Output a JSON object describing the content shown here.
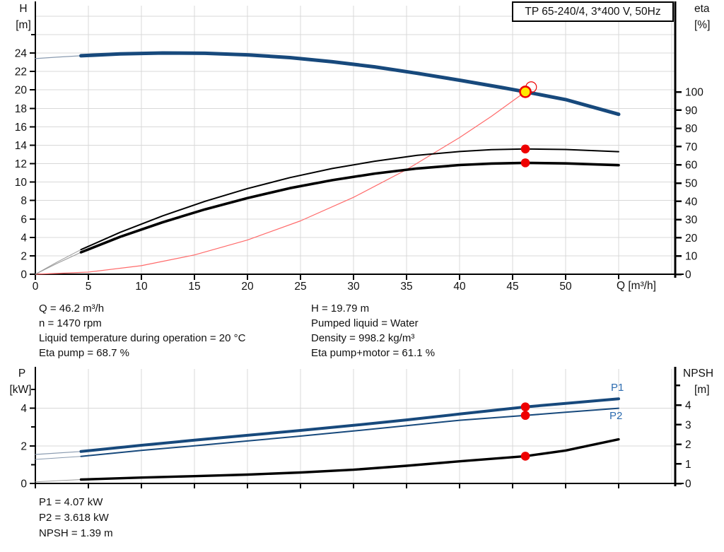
{
  "title_box": "TP 65-240/4, 3*400 V, 50Hz",
  "colors": {
    "curve_blue": "#17497c",
    "curve_black": "#000000",
    "system_red": "#ff6a6a",
    "marker_red": "#ee0000",
    "duty_yellow": "#ffe800",
    "lead_blue": "#8a9bb0",
    "lead_gray": "#9a9a9a",
    "grid": "#d8d8d8",
    "axis": "#000000",
    "label_blue": "#2d6cb0"
  },
  "axis_captions": {
    "top_left_1": "H",
    "top_left_2": "[m]",
    "top_right_1": "eta",
    "top_right_2": "[%]",
    "top_x": "Q [m³/h]",
    "bottom_left_1": "P",
    "bottom_left_2": "[kW]",
    "bottom_right_1": "NPSH",
    "bottom_right_2": "[m]"
  },
  "info": {
    "left": [
      "Q = 46.2 m³/h",
      "n = 1470 rpm",
      "Liquid temperature during operation = 20 °C",
      "Eta pump = 68.7 %"
    ],
    "right": [
      "H = 19.79 m",
      "Pumped liquid = Water",
      "Density = 998.2 kg/m³",
      "Eta pump+motor = 61.1 %"
    ],
    "bottom": [
      "P1 = 4.07 kW",
      "P2 = 3.618 kW",
      "NPSH = 1.39 m"
    ]
  },
  "curve_labels": {
    "p1": "P1",
    "p2": "P2"
  },
  "chart_data": [
    {
      "id": "head",
      "type": "line",
      "title": "TP 65-240/4, 3*400 V, 50Hz",
      "xlabel": "Q [m³/h]",
      "ylabel_left": "H [m]",
      "ylabel_right": "eta [%]",
      "x_range": [
        0,
        60.33
      ],
      "y_left_range": [
        0,
        29.14
      ],
      "y_right_range": [
        0,
        147.3
      ],
      "grid_x": [
        5,
        10,
        15,
        20,
        25,
        30,
        35,
        40,
        45,
        50,
        55,
        60
      ],
      "grid_left": [
        2,
        4,
        6,
        8,
        10,
        12,
        14,
        16,
        18,
        20,
        22,
        24,
        26,
        28
      ],
      "x_ticks": [
        {
          "v": 0,
          "label": "0"
        },
        {
          "v": 5,
          "label": "5"
        },
        {
          "v": 10,
          "label": "10"
        },
        {
          "v": 15,
          "label": "15"
        },
        {
          "v": 20,
          "label": "20"
        },
        {
          "v": 25,
          "label": "25"
        },
        {
          "v": 30,
          "label": "30"
        },
        {
          "v": 35,
          "label": "35"
        },
        {
          "v": 40,
          "label": "40"
        },
        {
          "v": 45,
          "label": "45"
        },
        {
          "v": 50,
          "label": "50"
        },
        {
          "v": 55,
          "label": ""
        }
      ],
      "left_ticks": [
        {
          "v": 0,
          "label": "0"
        },
        {
          "v": 2,
          "label": "2"
        },
        {
          "v": 4,
          "label": "4"
        },
        {
          "v": 6,
          "label": "6"
        },
        {
          "v": 8,
          "label": "8"
        },
        {
          "v": 10,
          "label": "10"
        },
        {
          "v": 12,
          "label": "12"
        },
        {
          "v": 14,
          "label": "14"
        },
        {
          "v": 16,
          "label": "16"
        },
        {
          "v": 18,
          "label": "18"
        },
        {
          "v": 20,
          "label": "20"
        },
        {
          "v": 22,
          "label": "22"
        },
        {
          "v": 24,
          "label": "24"
        },
        {
          "v": 26,
          "label": ""
        }
      ],
      "right_ticks": [
        {
          "v": 0,
          "label": "0"
        },
        {
          "v": 10,
          "label": "10"
        },
        {
          "v": 20,
          "label": "20"
        },
        {
          "v": 30,
          "label": "30"
        },
        {
          "v": 40,
          "label": "40"
        },
        {
          "v": 50,
          "label": "50"
        },
        {
          "v": 60,
          "label": "60"
        },
        {
          "v": 70,
          "label": "70"
        },
        {
          "v": 80,
          "label": "80"
        },
        {
          "v": 90,
          "label": "90"
        },
        {
          "v": 100,
          "label": "100"
        }
      ],
      "series": [
        {
          "name": "system-curve",
          "axis": "left",
          "color": "#ff6a6a",
          "width": 1.2,
          "points": [
            [
              0,
              0
            ],
            [
              5,
              0.23
            ],
            [
              10,
              0.93
            ],
            [
              15,
              2.09
            ],
            [
              20,
              3.71
            ],
            [
              25,
              5.79
            ],
            [
              30,
              8.34
            ],
            [
              35,
              11.35
            ],
            [
              40,
              14.83
            ],
            [
              43,
              17.13
            ],
            [
              46.2,
              19.79
            ]
          ]
        },
        {
          "name": "pump-head-curve",
          "axis": "left",
          "color": "#17497c",
          "width": 5,
          "lead": {
            "color": "#8a9bb0",
            "width": 1.2,
            "points": [
              [
                0,
                23.4
              ],
              [
                2,
                23.55
              ],
              [
                4.3,
                23.7
              ]
            ]
          },
          "points": [
            [
              4.3,
              23.7
            ],
            [
              8,
              23.9
            ],
            [
              12,
              24.0
            ],
            [
              16,
              23.97
            ],
            [
              20,
              23.8
            ],
            [
              24,
              23.5
            ],
            [
              28,
              23.05
            ],
            [
              32,
              22.5
            ],
            [
              36,
              21.8
            ],
            [
              40,
              21.05
            ],
            [
              44,
              20.25
            ],
            [
              46.2,
              19.79
            ],
            [
              50,
              18.95
            ],
            [
              55,
              17.35
            ]
          ]
        },
        {
          "name": "eta-pump-curve",
          "axis": "right",
          "color": "#000000",
          "width": 2,
          "lead": {
            "color": "#9a9a9a",
            "width": 1,
            "points": [
              [
                0,
                0
              ],
              [
                2,
                6.5
              ],
              [
                4.3,
                13.5
              ]
            ]
          },
          "points": [
            [
              4.3,
              13.5
            ],
            [
              8,
              23
            ],
            [
              12,
              32
            ],
            [
              16,
              40
            ],
            [
              20,
              47
            ],
            [
              24,
              53
            ],
            [
              28,
              58
            ],
            [
              32,
              62
            ],
            [
              36,
              65.2
            ],
            [
              40,
              67.3
            ],
            [
              43,
              68.3
            ],
            [
              46.2,
              68.7
            ],
            [
              50,
              68.4
            ],
            [
              55,
              67.2
            ]
          ]
        },
        {
          "name": "eta-pump-motor-curve",
          "axis": "right",
          "color": "#000000",
          "width": 3.6,
          "lead": {
            "color": "#9a9a9a",
            "width": 1,
            "points": [
              [
                0,
                0
              ],
              [
                2,
                5.8
              ],
              [
                4.3,
                12
              ]
            ]
          },
          "points": [
            [
              4.3,
              12
            ],
            [
              8,
              20.5
            ],
            [
              12,
              28.5
            ],
            [
              16,
              35.6
            ],
            [
              20,
              41.8
            ],
            [
              24,
              47.2
            ],
            [
              28,
              51.6
            ],
            [
              32,
              55.2
            ],
            [
              36,
              58
            ],
            [
              40,
              59.9
            ],
            [
              43,
              60.7
            ],
            [
              46.2,
              61.1
            ],
            [
              50,
              60.8
            ],
            [
              55,
              59.8
            ]
          ]
        }
      ],
      "markers": [
        {
          "name": "duty-ring",
          "x": 46.75,
          "v": 20.3,
          "axis": "left",
          "r": 7.5,
          "fill": "none",
          "stroke": "#ee0000",
          "sw": 1.2
        },
        {
          "name": "duty-point",
          "x": 46.2,
          "v": 19.79,
          "axis": "left",
          "r": 7.5,
          "fill": "#ffe800",
          "stroke": "#ee0000",
          "sw": 2.6
        },
        {
          "name": "eta-pump-point",
          "x": 46.2,
          "v": 68.7,
          "axis": "right",
          "r": 6.3,
          "fill": "#ee0000",
          "stroke": "none",
          "sw": 0
        },
        {
          "name": "eta-pump-motor-point",
          "x": 46.2,
          "v": 61.1,
          "axis": "right",
          "r": 6.3,
          "fill": "#ee0000",
          "stroke": "none",
          "sw": 0
        }
      ]
    },
    {
      "id": "power",
      "type": "line",
      "xlabel": "Q [m³/h]",
      "ylabel_left": "P [kW]",
      "ylabel_right": "NPSH [m]",
      "x_range": [
        0,
        60.33
      ],
      "y_left_range": [
        0,
        6.09
      ],
      "y_right_range": [
        0,
        5.84
      ],
      "grid_x": [
        5,
        10,
        15,
        20,
        25,
        30,
        35,
        40,
        45,
        50,
        55,
        60
      ],
      "grid_left": [
        2,
        4
      ],
      "x_ticks": [
        {
          "v": 0,
          "label": ""
        },
        {
          "v": 5,
          "label": ""
        },
        {
          "v": 10,
          "label": ""
        },
        {
          "v": 15,
          "label": ""
        },
        {
          "v": 20,
          "label": ""
        },
        {
          "v": 25,
          "label": ""
        },
        {
          "v": 30,
          "label": ""
        },
        {
          "v": 35,
          "label": ""
        },
        {
          "v": 40,
          "label": ""
        },
        {
          "v": 45,
          "label": ""
        },
        {
          "v": 50,
          "label": ""
        },
        {
          "v": 55,
          "label": ""
        }
      ],
      "left_ticks": [
        {
          "v": 0,
          "label": "0"
        },
        {
          "v": 1,
          "label": ""
        },
        {
          "v": 2,
          "label": "2"
        },
        {
          "v": 3,
          "label": ""
        },
        {
          "v": 4,
          "label": "4"
        },
        {
          "v": 5,
          "label": ""
        }
      ],
      "right_ticks": [
        {
          "v": 0,
          "label": "0"
        },
        {
          "v": 1,
          "label": "1"
        },
        {
          "v": 2,
          "label": "2"
        },
        {
          "v": 3,
          "label": "3"
        },
        {
          "v": 4,
          "label": "4"
        },
        {
          "v": 5,
          "label": ""
        }
      ],
      "series": [
        {
          "name": "p1-curve",
          "axis": "left",
          "color": "#17497c",
          "width": 4,
          "lead": {
            "color": "#8a9bb0",
            "width": 1.2,
            "points": [
              [
                0,
                1.54
              ],
              [
                4.3,
                1.7
              ]
            ]
          },
          "points": [
            [
              4.3,
              1.7
            ],
            [
              10,
              2.03
            ],
            [
              15,
              2.3
            ],
            [
              20,
              2.56
            ],
            [
              25,
              2.82
            ],
            [
              30,
              3.09
            ],
            [
              35,
              3.38
            ],
            [
              40,
              3.69
            ],
            [
              46.2,
              4.07
            ],
            [
              50,
              4.26
            ],
            [
              55,
              4.5
            ]
          ]
        },
        {
          "name": "p2-curve",
          "axis": "left",
          "color": "#17497c",
          "width": 2,
          "lead": {
            "color": "#8a9bb0",
            "width": 1,
            "points": [
              [
                0,
                1.28
              ],
              [
                4.3,
                1.44
              ]
            ]
          },
          "points": [
            [
              4.3,
              1.44
            ],
            [
              10,
              1.76
            ],
            [
              15,
              2.0
            ],
            [
              20,
              2.26
            ],
            [
              25,
              2.52
            ],
            [
              30,
              2.79
            ],
            [
              35,
              3.07
            ],
            [
              40,
              3.36
            ],
            [
              46.2,
              3.618
            ],
            [
              50,
              3.79
            ],
            [
              55,
              4.0
            ]
          ]
        },
        {
          "name": "npsh-curve",
          "axis": "right",
          "color": "#000000",
          "width": 3.4,
          "lead": {
            "color": "#9a9a9a",
            "width": 1,
            "points": [
              [
                0,
                0.08
              ],
              [
                4.3,
                0.2
              ]
            ]
          },
          "points": [
            [
              4.3,
              0.2
            ],
            [
              10,
              0.3
            ],
            [
              15,
              0.37
            ],
            [
              20,
              0.45
            ],
            [
              25,
              0.56
            ],
            [
              30,
              0.7
            ],
            [
              35,
              0.9
            ],
            [
              40,
              1.13
            ],
            [
              46.2,
              1.39
            ],
            [
              50,
              1.68
            ],
            [
              55,
              2.25
            ]
          ]
        }
      ],
      "markers": [
        {
          "name": "p1-point",
          "x": 46.2,
          "v": 4.07,
          "axis": "left",
          "r": 6.3,
          "fill": "#ee0000",
          "stroke": "none",
          "sw": 0
        },
        {
          "name": "p2-point",
          "x": 46.2,
          "v": 3.618,
          "axis": "left",
          "r": 6.3,
          "fill": "#ee0000",
          "stroke": "none",
          "sw": 0
        },
        {
          "name": "npsh-point",
          "x": 46.2,
          "v": 1.39,
          "axis": "right",
          "r": 6.3,
          "fill": "#ee0000",
          "stroke": "none",
          "sw": 0
        }
      ]
    }
  ]
}
